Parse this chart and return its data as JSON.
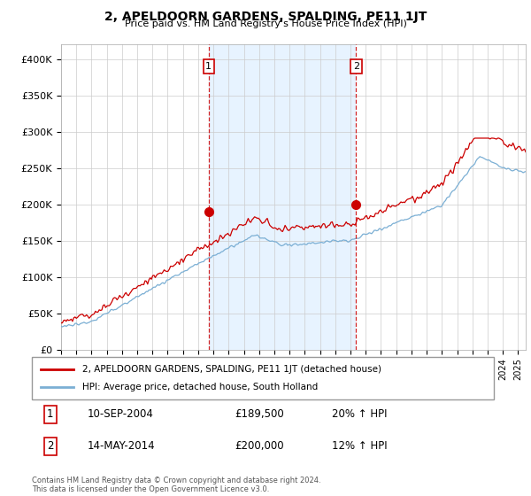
{
  "title": "2, APELDOORN GARDENS, SPALDING, PE11 1JT",
  "subtitle": "Price paid vs. HM Land Registry's House Price Index (HPI)",
  "ylabel_ticks": [
    "£0",
    "£50K",
    "£100K",
    "£150K",
    "£200K",
    "£250K",
    "£300K",
    "£350K",
    "£400K"
  ],
  "ytick_values": [
    0,
    50000,
    100000,
    150000,
    200000,
    250000,
    300000,
    350000,
    400000
  ],
  "ylim": [
    0,
    420000
  ],
  "xlim_start": 1995.0,
  "xlim_end": 2025.5,
  "sale1_x": 2004.69,
  "sale1_y": 189500,
  "sale2_x": 2014.37,
  "sale2_y": 200000,
  "sale1_label": "1",
  "sale2_label": "2",
  "sale1_date": "10-SEP-2004",
  "sale1_price": "£189,500",
  "sale1_hpi": "20% ↑ HPI",
  "sale2_date": "14-MAY-2014",
  "sale2_price": "£200,000",
  "sale2_hpi": "12% ↑ HPI",
  "legend_line1": "2, APELDOORN GARDENS, SPALDING, PE11 1JT (detached house)",
  "legend_line2": "HPI: Average price, detached house, South Holland",
  "footer": "Contains HM Land Registry data © Crown copyright and database right 2024.\nThis data is licensed under the Open Government Licence v3.0.",
  "line_color_red": "#cc0000",
  "line_color_blue": "#7bafd4",
  "shade_color": "#ddeeff",
  "vline_color": "#cc0000",
  "grid_color": "#cccccc",
  "background_color": "#ffffff"
}
